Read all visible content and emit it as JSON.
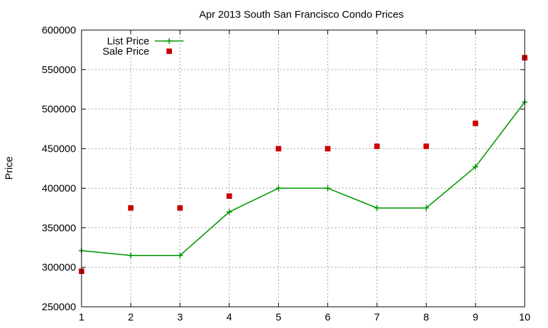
{
  "chart_data": {
    "type": "line",
    "title": "Apr 2013 South San Francisco Condo Prices",
    "xlabel": "",
    "ylabel": "Price",
    "xlim": [
      1,
      10
    ],
    "ylim": [
      250000,
      600000
    ],
    "x_ticks": [
      "1",
      "2",
      "3",
      "4",
      "5",
      "6",
      "7",
      "8",
      "9",
      "10"
    ],
    "y_ticks": [
      "250000",
      "300000",
      "350000",
      "400000",
      "450000",
      "500000",
      "550000",
      "600000"
    ],
    "grid": true,
    "legend_position": "top-left",
    "series": [
      {
        "name": "List Price",
        "style": "line-plus",
        "color": "#009900",
        "points": [
          [
            1,
            321000
          ],
          [
            2,
            315000
          ],
          [
            3,
            315000
          ],
          [
            4,
            370000
          ],
          [
            5,
            400000
          ],
          [
            6,
            400000
          ],
          [
            7,
            375000
          ],
          [
            8,
            375000
          ],
          [
            9,
            427000
          ],
          [
            10,
            509000
          ]
        ]
      },
      {
        "name": "Sale Price",
        "style": "square-points",
        "color": "#cc0000",
        "points": [
          [
            1,
            295000
          ],
          [
            2,
            375000
          ],
          [
            3,
            375000
          ],
          [
            4,
            390000
          ],
          [
            5,
            450000
          ],
          [
            6,
            450000
          ],
          [
            7,
            453000
          ],
          [
            8,
            453000
          ],
          [
            9,
            482000
          ],
          [
            10,
            565000
          ]
        ]
      }
    ]
  }
}
